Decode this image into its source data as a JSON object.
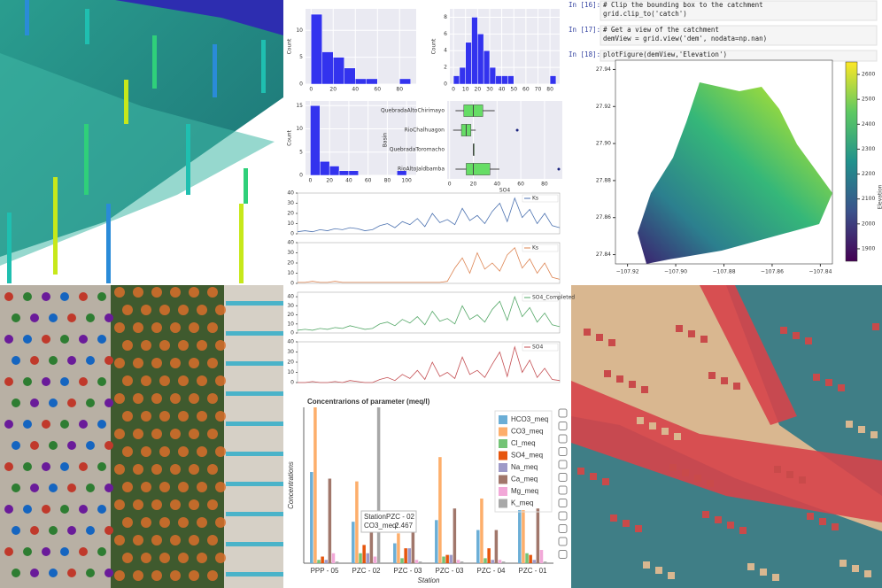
{
  "notebook": {
    "cells": [
      {
        "prompt": "In [16]:",
        "code": [
          "# Clip the bounding box to the catchment",
          "grid.clip_to('catch')"
        ]
      },
      {
        "prompt": "In [17]:",
        "code": [
          "# Get a view of the catchment",
          "demView = grid.view('dem', nodata=np.nan)"
        ]
      },
      {
        "prompt": "In [18]:",
        "code": [
          "plotFigure(demView,'Elevation')"
        ]
      }
    ]
  },
  "chart_data": [
    {
      "type": "histogram",
      "ylabel": "Count",
      "color": "#3333ee",
      "bins": [
        0,
        10,
        20,
        30,
        40,
        50,
        60,
        70,
        80,
        90
      ],
      "values": [
        13,
        6,
        5,
        3,
        1,
        1,
        0,
        0,
        1
      ],
      "xlim": [
        -5,
        95
      ],
      "ylim": [
        0,
        14
      ],
      "xticks": [
        0,
        20,
        40,
        60,
        80
      ],
      "yticks": [
        0,
        5,
        10
      ]
    },
    {
      "type": "histogram",
      "ylabel": "Count",
      "color": "#3333ee",
      "bins": [
        0,
        5,
        10,
        15,
        20,
        25,
        30,
        35,
        40,
        45,
        50,
        55,
        60,
        65,
        70,
        75,
        80,
        85
      ],
      "values": [
        1,
        2,
        5,
        8,
        6,
        4,
        2,
        1,
        1,
        1,
        0,
        0,
        0,
        0,
        0,
        0,
        1
      ],
      "xlim": [
        -3,
        88
      ],
      "ylim": [
        0,
        9
      ],
      "xticks": [
        0,
        10,
        20,
        30,
        40,
        50,
        60,
        70,
        80
      ],
      "yticks": [
        0,
        2,
        4,
        6,
        8
      ]
    },
    {
      "type": "histogram",
      "ylabel": "Count",
      "color": "#3333ee",
      "bins": [
        0,
        10,
        20,
        30,
        40,
        50,
        60,
        70,
        80,
        90,
        100
      ],
      "values": [
        15,
        3,
        2,
        1,
        1,
        0,
        0,
        0,
        0,
        1
      ],
      "xlim": [
        -5,
        110
      ],
      "ylim": [
        0,
        16
      ],
      "xticks": [
        0,
        20,
        40,
        60,
        80,
        100
      ],
      "yticks": [
        0,
        5,
        10,
        15
      ]
    },
    {
      "type": "box",
      "xlabel": "SO4",
      "ylabel": "Basin",
      "color": "#66dd66",
      "categories": [
        "QuebradaAltoChirimayo",
        "RioChalhuagon",
        "QuebradaToromacho",
        "RioAltoJaldbamba"
      ],
      "boxes": [
        [
          5,
          12,
          20,
          28,
          38
        ],
        [
          3,
          10,
          14,
          18,
          22
        ],
        [
          20,
          20,
          20,
          20,
          20
        ],
        [
          5,
          14,
          20,
          34,
          42
        ]
      ],
      "outliers": [
        [],
        [
          57
        ],
        [],
        [
          92
        ]
      ],
      "xlim": [
        -2,
        95
      ],
      "xticks": [
        0,
        20,
        40,
        60,
        80
      ]
    },
    {
      "type": "line",
      "series": [
        {
          "name": "Ks",
          "color": "#4c72b0",
          "values": [
            2,
            3,
            2,
            4,
            3,
            5,
            4,
            6,
            5,
            3,
            4,
            8,
            10,
            6,
            12,
            9,
            15,
            7,
            20,
            11,
            14,
            9,
            25,
            13,
            18,
            10,
            22,
            30,
            12,
            35,
            16,
            24,
            10,
            20,
            8,
            6
          ]
        }
      ],
      "ylim": [
        0,
        40
      ],
      "yticks": [
        0,
        10,
        20,
        30,
        40
      ]
    },
    {
      "type": "line",
      "series": [
        {
          "name": "Ks",
          "color": "#dd8452",
          "values": [
            1,
            1,
            2,
            1,
            1,
            2,
            1,
            1,
            1,
            1,
            1,
            1,
            1,
            1,
            1,
            1,
            1,
            1,
            1,
            1,
            2,
            15,
            25,
            10,
            30,
            14,
            20,
            12,
            28,
            35,
            15,
            24,
            10,
            20,
            6,
            4
          ]
        }
      ],
      "ylim": [
        0,
        40
      ],
      "yticks": [
        0,
        10,
        20,
        30,
        40
      ]
    },
    {
      "type": "line",
      "series": [
        {
          "name": "SO4_Completed",
          "color": "#55a868",
          "values": [
            3,
            4,
            3,
            5,
            4,
            6,
            5,
            8,
            6,
            4,
            5,
            10,
            12,
            8,
            15,
            11,
            18,
            9,
            24,
            13,
            16,
            10,
            30,
            15,
            20,
            12,
            26,
            35,
            14,
            40,
            18,
            28,
            12,
            22,
            9,
            7
          ]
        }
      ],
      "ylim": [
        0,
        45
      ],
      "yticks": [
        0,
        10,
        20,
        30,
        40
      ]
    },
    {
      "type": "line",
      "series": [
        {
          "name": "SO4",
          "color": "#c44e52",
          "values": [
            0,
            0,
            1,
            0,
            0,
            1,
            0,
            2,
            1,
            0,
            0,
            3,
            5,
            2,
            8,
            4,
            12,
            3,
            20,
            6,
            10,
            4,
            25,
            8,
            12,
            5,
            18,
            30,
            6,
            35,
            10,
            22,
            5,
            14,
            3,
            2
          ]
        }
      ],
      "ylim": [
        0,
        40
      ],
      "yticks": [
        0,
        10,
        20,
        30,
        40
      ]
    },
    {
      "type": "raster",
      "colorbar_label": "Elevation",
      "clim": [
        1850,
        2650
      ],
      "colorbar_ticks": [
        1900,
        2000,
        2100,
        2200,
        2300,
        2400,
        2500,
        2600
      ],
      "xlim": [
        -107.925,
        -107.835
      ],
      "ylim": [
        27.835,
        27.945
      ],
      "xticks": [
        {
          "value": -107.92,
          "label": "−107.92"
        },
        {
          "value": -107.9,
          "label": "−107.90"
        },
        {
          "value": -107.88,
          "label": "−107.88"
        },
        {
          "value": -107.86,
          "label": "−107.86"
        },
        {
          "value": -107.84,
          "label": "−107.84"
        }
      ],
      "yticks": [
        {
          "value": 27.84,
          "label": "27.84"
        },
        {
          "value": 27.86,
          "label": "27.86"
        },
        {
          "value": 27.88,
          "label": "27.88"
        },
        {
          "value": 27.9,
          "label": "27.90"
        },
        {
          "value": 27.92,
          "label": "27.92"
        },
        {
          "value": 27.94,
          "label": "27.94"
        }
      ]
    },
    {
      "type": "bar",
      "title": "Concentrarions of parameter (meq/l)",
      "xlabel": "Station",
      "ylabel": "Concentrations",
      "categories": [
        "PPP - 05",
        "PZC - 02",
        "PZC - 03",
        "PZC - 03",
        "PZC - 04",
        "PZC - 01"
      ],
      "ylim": [
        0,
        4.7
      ],
      "series": [
        {
          "name": "HCO3_meq",
          "color": "#6baed6",
          "values": [
            2.75,
            1.25,
            0.6,
            1.3,
            1.0,
            1.6
          ]
        },
        {
          "name": "CO3_meq",
          "color": "#fdae6b",
          "values": [
            4.7,
            2.467,
            0.9,
            3.2,
            1.95,
            1.6
          ]
        },
        {
          "name": "Cl_meq",
          "color": "#74c476",
          "values": [
            0.1,
            0.3,
            0.15,
            0.2,
            0.15,
            0.3
          ]
        },
        {
          "name": "SO4_meq",
          "color": "#e6550d",
          "values": [
            0.2,
            0.55,
            0.45,
            0.25,
            0.45,
            0.25
          ]
        },
        {
          "name": "Na_meq",
          "color": "#9e9ac8",
          "values": [
            0.1,
            0.3,
            0.45,
            0.25,
            0.1,
            0.1
          ]
        },
        {
          "name": "Ca_meq",
          "color": "#a1776b",
          "values": [
            2.55,
            1.3,
            0.95,
            1.65,
            1.0,
            1.65
          ]
        },
        {
          "name": "Mg_meq",
          "color": "#f2a8d8",
          "values": [
            0.3,
            0.2,
            0.1,
            0.1,
            0.1,
            0.4
          ]
        },
        {
          "name": "K_meq",
          "color": "#a8a8a8",
          "values": [
            0.05,
            4.7,
            0.05,
            0.05,
            0.05,
            0.05
          ]
        }
      ],
      "tooltip": {
        "station_label": "Station:",
        "station": "PZC - 02",
        "value_label": "CO3_meq:",
        "value": "2.467"
      }
    }
  ]
}
